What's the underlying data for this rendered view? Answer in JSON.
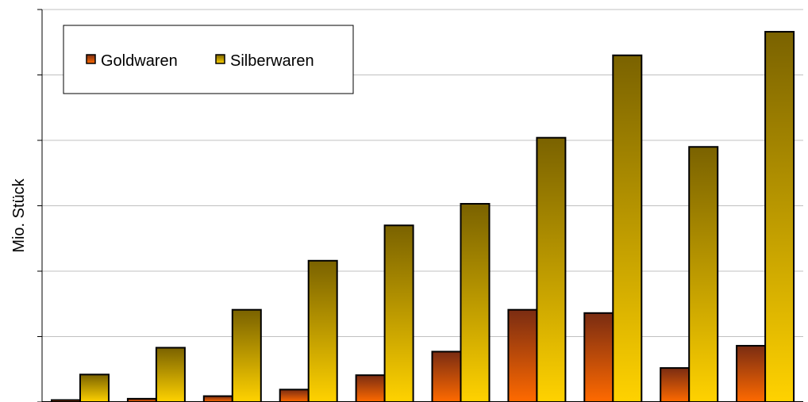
{
  "chart_data": {
    "type": "bar",
    "title": "",
    "xlabel": "",
    "ylabel": "Mio. Stück",
    "categories": [
      "",
      "",
      "",
      "",
      "",
      "",
      "",
      "",
      "",
      ""
    ],
    "ylim": [
      0,
      6
    ],
    "grid": true,
    "legend": "top-left",
    "series": [
      {
        "name": "Goldwaren",
        "values": [
          0.03,
          0.05,
          0.09,
          0.19,
          0.41,
          0.77,
          1.41,
          1.36,
          0.52,
          0.86
        ],
        "color_top": "#7a2c12",
        "color_bottom": "#ff6a00"
      },
      {
        "name": "Silberwaren",
        "values": [
          0.42,
          0.83,
          1.41,
          2.16,
          2.7,
          3.03,
          4.04,
          5.3,
          3.9,
          5.66
        ],
        "color_top": "#7a6200",
        "color_bottom": "#ffd200"
      }
    ]
  },
  "colors": {
    "gridline": "#c0c0c0",
    "axis": "#000000"
  }
}
